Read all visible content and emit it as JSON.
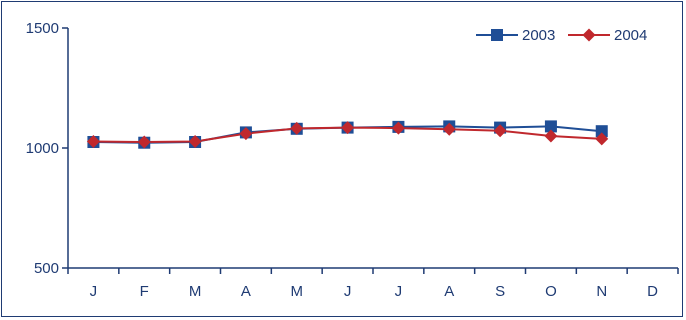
{
  "chart_data": {
    "type": "line",
    "title": "",
    "xlabel": "",
    "ylabel": "",
    "categories": [
      "J",
      "F",
      "M",
      "A",
      "M",
      "J",
      "J",
      "A",
      "S",
      "O",
      "N",
      "D"
    ],
    "ylim": [
      500,
      1500
    ],
    "yticks": [
      "500",
      "1000",
      "1500"
    ],
    "grid": false,
    "legend_position": "top-right",
    "series": [
      {
        "name": "2003",
        "color": "#1f4e96",
        "marker": "square",
        "values": [
          1025,
          1022,
          1025,
          1065,
          1080,
          1085,
          1088,
          1090,
          1085,
          1090,
          1070,
          null
        ]
      },
      {
        "name": "2004",
        "color": "#c0282d",
        "marker": "diamond",
        "values": [
          1027,
          1025,
          1027,
          1060,
          1082,
          1085,
          1083,
          1078,
          1072,
          1050,
          1038,
          null
        ]
      }
    ]
  }
}
